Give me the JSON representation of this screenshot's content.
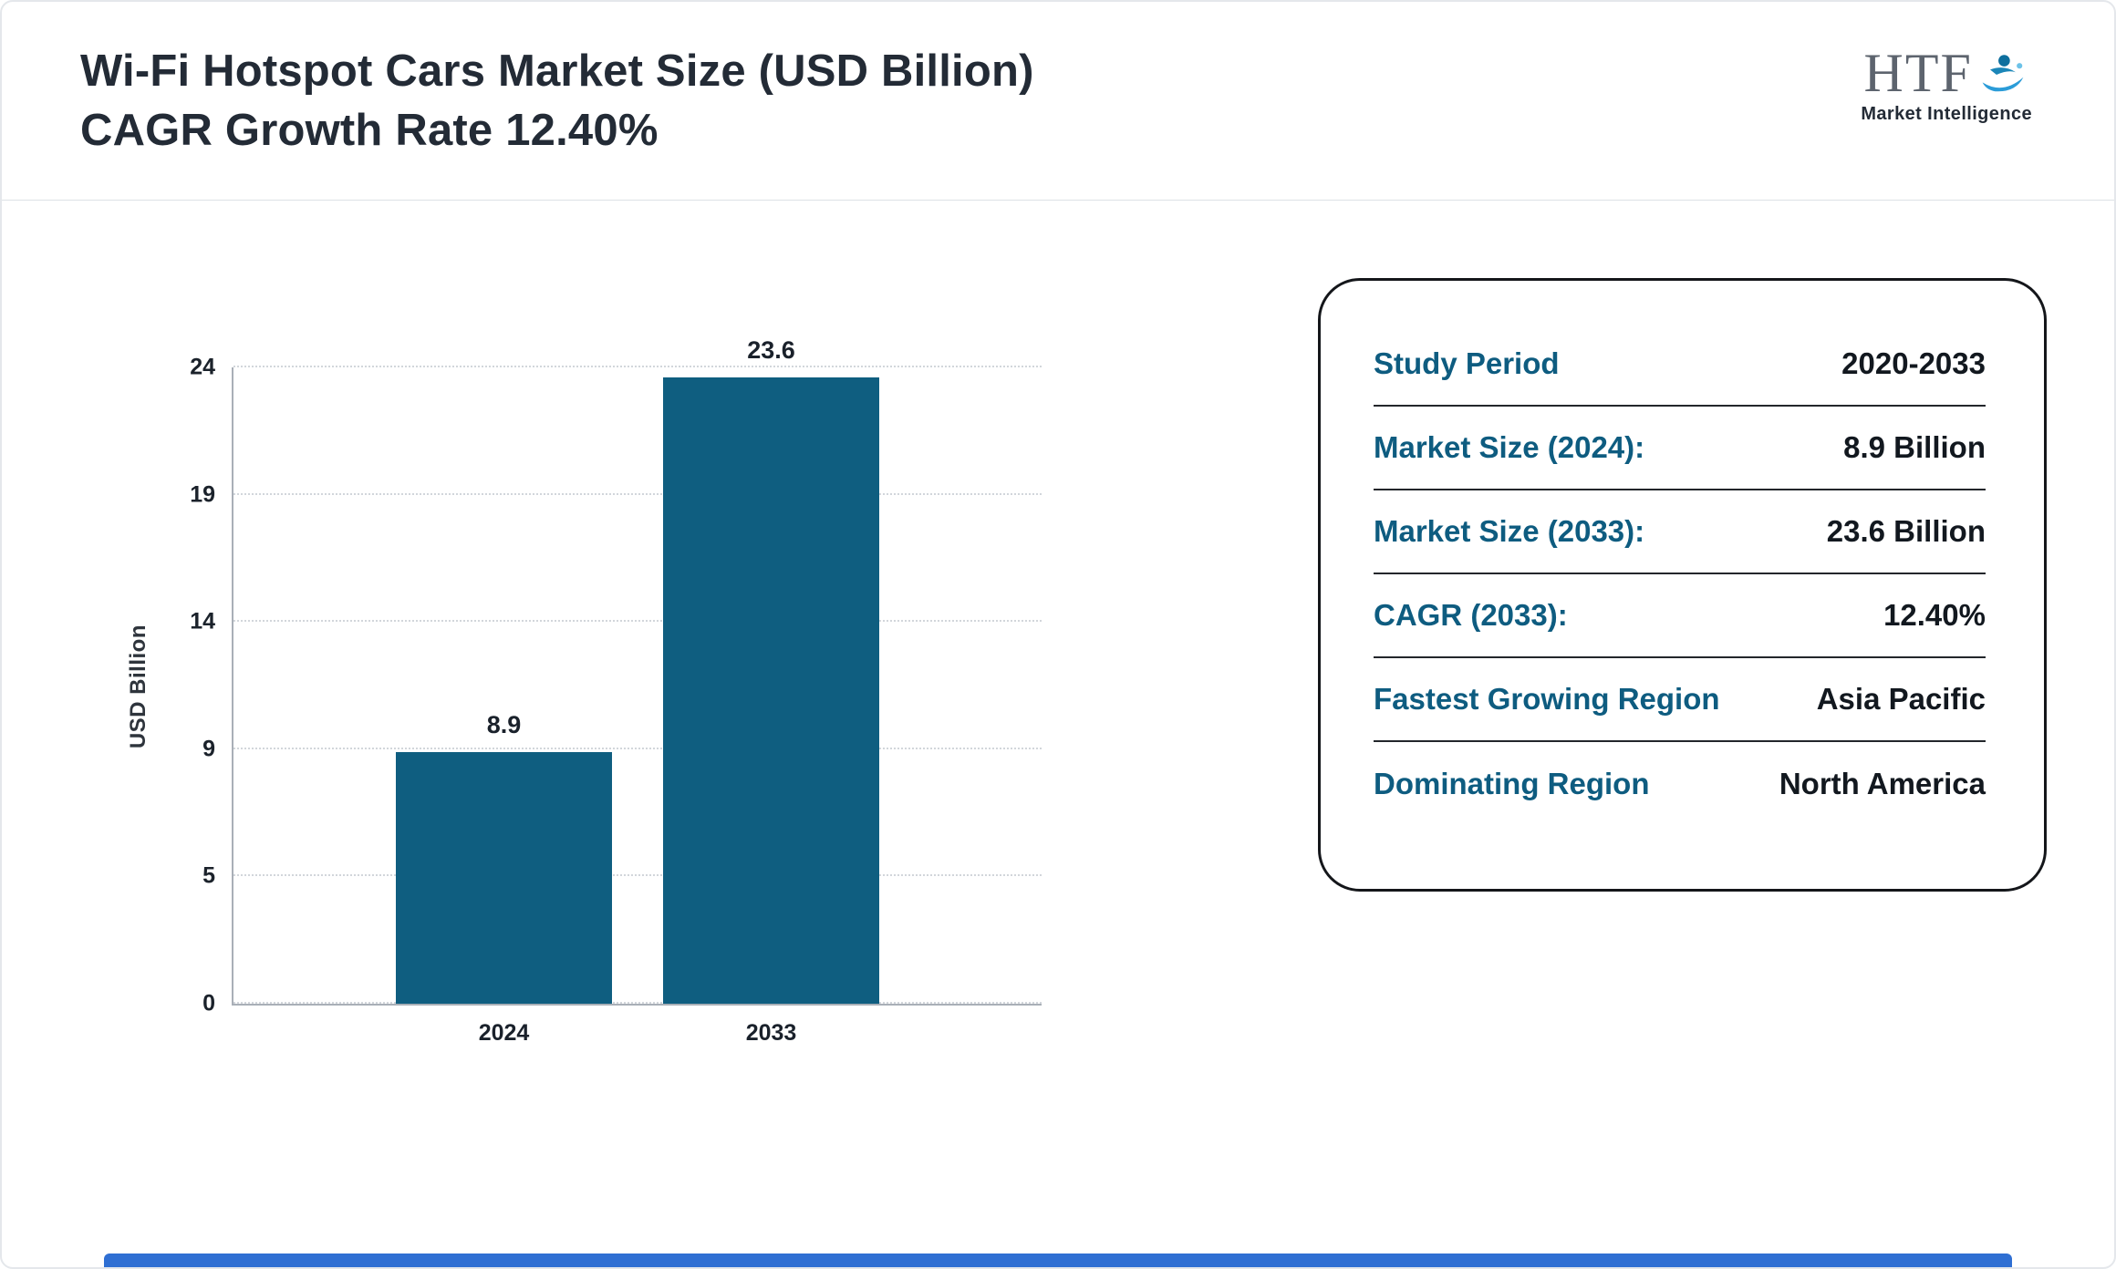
{
  "page": {
    "title_line1": "Wi-Fi Hotspot Cars Market Size (USD Billion)",
    "title_line2": "CAGR Growth Rate 12.40%"
  },
  "logo": {
    "text": "HTF",
    "subtext": "Market Intelligence"
  },
  "chart_data": {
    "type": "bar",
    "categories": [
      "2024",
      "2033"
    ],
    "values": [
      8.9,
      23.6
    ],
    "value_labels": [
      "8.9",
      "23.6"
    ],
    "title": "Wi-Fi Hotspot Cars Market Size (USD Billion) CAGR Growth Rate 12.40%",
    "xlabel": "",
    "ylabel": "USD Billion",
    "yticks": [
      0,
      5,
      9,
      14,
      19,
      24
    ],
    "ylim": [
      0,
      24
    ],
    "grid": "horizontal-dotted",
    "legend": "none"
  },
  "panel": {
    "rows": [
      {
        "label": "Study Period",
        "value": "2020-2033"
      },
      {
        "label": "Market Size (2024):",
        "value": "8.9 Billion"
      },
      {
        "label": "Market Size (2033):",
        "value": "23.6 Billion"
      },
      {
        "label": "CAGR (2033):",
        "value": "12.40%"
      },
      {
        "label": "Fastest Growing Region",
        "value": "Asia Pacific"
      },
      {
        "label": "Dominating Region",
        "value": "North America"
      }
    ]
  },
  "colors": {
    "bar": "#0F5E80",
    "panel_label": "#0E5C80",
    "title_text": "#232B36",
    "footer_strip": "#2F6FD3"
  }
}
